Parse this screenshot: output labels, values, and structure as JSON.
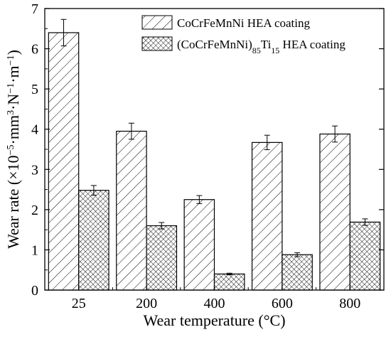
{
  "chart_data": {
    "type": "bar",
    "xlabel": "Wear temperature (°C)",
    "ylabel": {
      "parts": [
        {
          "t": "Wear rate (×10",
          "s": "n"
        },
        {
          "t": "−5",
          "s": "sup"
        },
        {
          "t": "·mm",
          "s": "n"
        },
        {
          "t": "3",
          "s": "sup"
        },
        {
          "t": "·N",
          "s": "n"
        },
        {
          "t": "−1",
          "s": "sup"
        },
        {
          "t": "·m",
          "s": "n"
        },
        {
          "t": "−1",
          "s": "sup"
        },
        {
          "t": ")",
          "s": "n"
        }
      ]
    },
    "categories": [
      "25",
      "200",
      "400",
      "600",
      "800"
    ],
    "ylim": [
      0,
      7
    ],
    "yticks": [
      "0",
      "1",
      "2",
      "3",
      "4",
      "5",
      "6",
      "7"
    ],
    "grid": false,
    "legend_position": "top-right",
    "series": [
      {
        "name": "CoCrFeMnNi HEA coating",
        "name_parts": [
          {
            "t": "CoCrFeMnNi HEA coating",
            "s": "n"
          }
        ],
        "pattern": "diagonal-hatch",
        "values": [
          6.4,
          3.95,
          2.25,
          3.67,
          3.88
        ],
        "errors": [
          0.33,
          0.2,
          0.1,
          0.18,
          0.2
        ]
      },
      {
        "name": "(CoCrFeMnNi)85Ti15 HEA coating",
        "name_parts": [
          {
            "t": "(CoCrFeMnNi)",
            "s": "n"
          },
          {
            "t": "85",
            "s": "sub"
          },
          {
            "t": "Ti",
            "s": "n"
          },
          {
            "t": "15",
            "s": "sub"
          },
          {
            "t": " HEA coating",
            "s": "n"
          }
        ],
        "pattern": "cross-hatch",
        "values": [
          2.48,
          1.6,
          0.4,
          0.88,
          1.69
        ],
        "errors": [
          0.12,
          0.08,
          0.02,
          0.05,
          0.08
        ]
      }
    ]
  }
}
